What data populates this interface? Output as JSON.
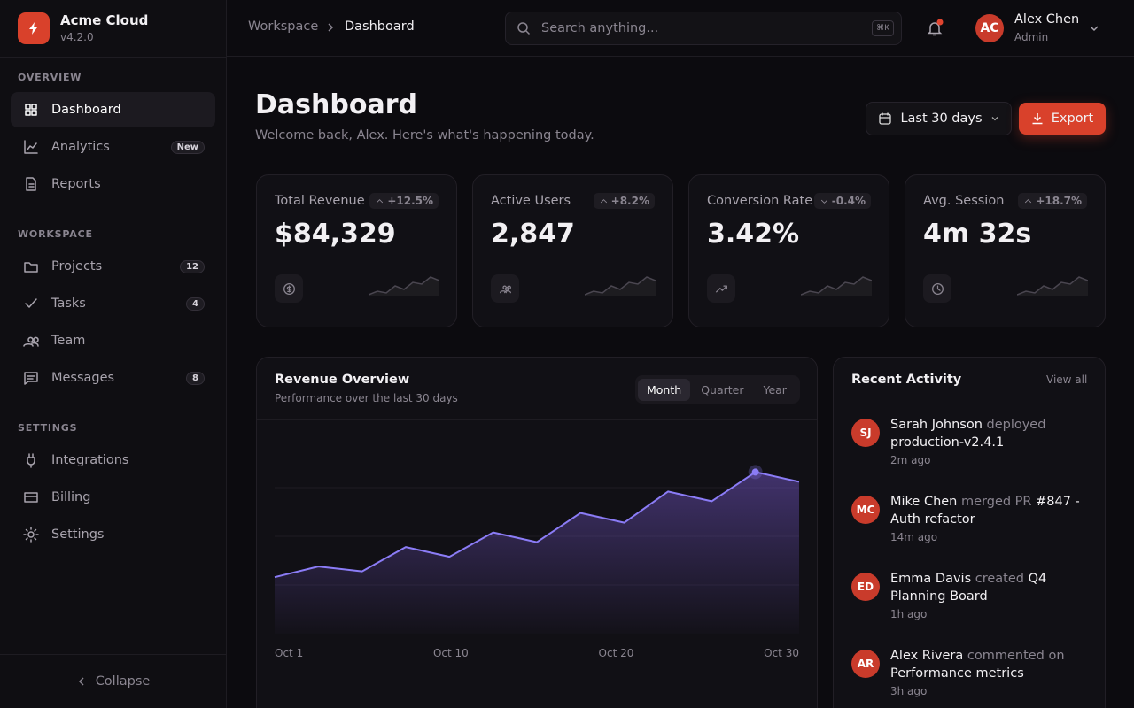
{
  "sidebar": {
    "brand": "Acme Cloud",
    "version": "v4.2.0",
    "sections": [
      {
        "title": "OVERVIEW",
        "items": [
          {
            "label": "Dashboard"
          },
          {
            "label": "Analytics",
            "badge": "New"
          },
          {
            "label": "Reports"
          }
        ]
      },
      {
        "title": "WORKSPACE",
        "items": [
          {
            "label": "Projects",
            "badge": 12
          },
          {
            "label": "Tasks",
            "badge": 4
          },
          {
            "label": "Team"
          },
          {
            "label": "Messages",
            "badge": 8
          }
        ]
      },
      {
        "title": "SETTINGS",
        "items": [
          {
            "label": "Integrations"
          },
          {
            "label": "Billing"
          },
          {
            "label": "Settings"
          }
        ]
      }
    ],
    "collapse": "Collapse"
  },
  "topbar": {
    "breadcrumb": [
      "Workspace",
      "Dashboard"
    ],
    "search_placeholder": "Search anything...",
    "shortcut": "⌘K",
    "user": {
      "initials": "AC",
      "name": "Alex Chen",
      "role": "Admin"
    }
  },
  "header": {
    "title": "Dashboard",
    "subtitle": "Welcome back, Alex. Here's what's happening today.",
    "range": "Last 30 days",
    "export": "Export"
  },
  "stats": [
    {
      "label": "Total Revenue",
      "change": "+12.5%",
      "value": "$84,329",
      "spark": [
        3,
        5,
        4,
        8,
        6,
        10,
        9,
        13,
        11
      ]
    },
    {
      "label": "Active Users",
      "change": "+8.2%",
      "value": "2,847",
      "spark": [
        3,
        5,
        4,
        8,
        6,
        10,
        9,
        13,
        11
      ]
    },
    {
      "label": "Conversion Rate",
      "change": "-0.4%",
      "value": "3.42%",
      "spark": [
        3,
        5,
        4,
        8,
        6,
        10,
        9,
        13,
        11
      ]
    },
    {
      "label": "Avg. Session",
      "change": "+18.7%",
      "value": "4m 32s",
      "spark": [
        3,
        5,
        4,
        8,
        6,
        10,
        9,
        13,
        11
      ]
    }
  ],
  "revenue": {
    "title": "Revenue Overview",
    "subtitle": "Performance over the last 30 days",
    "tabs": [
      "Month",
      "Quarter",
      "Year"
    ],
    "x_labels": [
      "Oct 1",
      "Oct 10",
      "Oct 20",
      "Oct 30"
    ],
    "values": [
      29,
      34.5,
      32,
      44.5,
      39.5,
      52,
      47,
      62,
      57,
      73,
      68,
      83,
      78
    ],
    "ylim": [
      0,
      100
    ],
    "yticks": [
      25,
      50,
      75
    ]
  },
  "activity": {
    "title": "Recent Activity",
    "view_all": "View all",
    "items": [
      {
        "initials": "SJ",
        "actor": "Sarah Johnson",
        "action": "deployed",
        "target": "production-v2.4.1",
        "time": "2m ago"
      },
      {
        "initials": "MC",
        "actor": "Mike Chen",
        "action": "merged PR",
        "target": "#847 - Auth refactor",
        "time": "14m ago"
      },
      {
        "initials": "ED",
        "actor": "Emma Davis",
        "action": "created",
        "target": "Q4 Planning Board",
        "time": "1h ago"
      },
      {
        "initials": "AR",
        "actor": "Alex Rivera",
        "action": "commented on",
        "target": "Performance metrics",
        "time": "3h ago"
      }
    ]
  }
}
